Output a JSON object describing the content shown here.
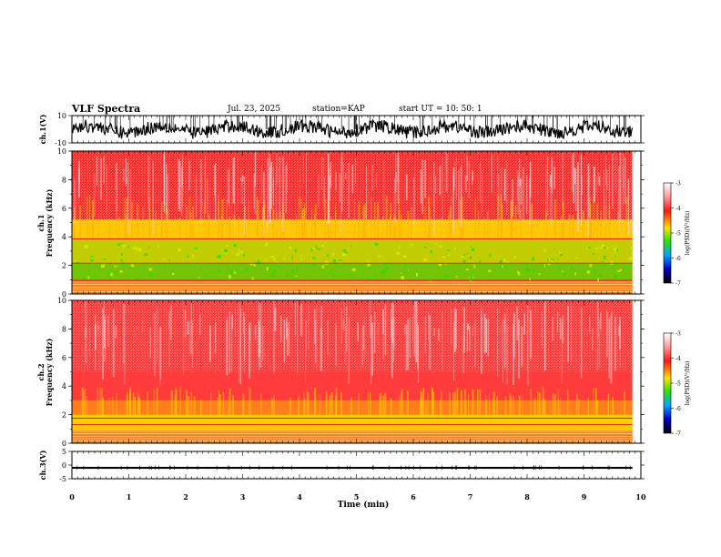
{
  "header": {
    "title": "VLF Spectra",
    "date": "Jul. 23, 2025",
    "station": "station=KAP",
    "start": "start UT =  10: 50: 1"
  },
  "colors": {
    "spectrogram_bg": "#ff2a2a",
    "spectrogram_low": "#ffb0b0",
    "band_yellow": "#f5e600",
    "band_green": "#48e000",
    "trace": "#000000"
  },
  "colorbar": {
    "label": "log(PSD)(V²/Hz)",
    "ticks": [
      "-3",
      "-4",
      "-5",
      "-6",
      "-7"
    ],
    "tick_values": [
      -3,
      -4,
      -5,
      -6,
      -7
    ],
    "stops": [
      "#ffffff",
      "#ff2020",
      "#ffe000",
      "#40e000",
      "#00a0ff",
      "#0000c0",
      "#000000"
    ]
  },
  "chart_data": [
    {
      "type": "line",
      "panel": "ch1-waveform",
      "ylabel": "ch.1(V)",
      "ylim": [
        -10,
        10
      ],
      "yticks": [
        "10",
        "-10"
      ],
      "x_range_min": [
        0,
        9.85
      ],
      "description_values": {
        "mean_V": 0,
        "typical_amplitude_V": 6,
        "max_amplitude_V": 10
      }
    },
    {
      "type": "heatmap",
      "panel": "ch1-spectrogram",
      "ylabel_1": "ch.1",
      "ylabel_2": "Frequency (kHz)",
      "ylim": [
        0,
        10
      ],
      "yticks": [
        "0",
        "2",
        "4",
        "6",
        "8",
        "10"
      ],
      "bands_kHz": [
        {
          "from": 0.0,
          "to": 0.9,
          "level": "orange"
        },
        {
          "from": 1.0,
          "to": 2.1,
          "level": "green"
        },
        {
          "from": 2.1,
          "to": 3.8,
          "level": "green-yellow"
        },
        {
          "from": 3.8,
          "to": 5.2,
          "level": "yellow"
        },
        {
          "from": 5.2,
          "to": 10.0,
          "level": "red"
        }
      ],
      "lines_kHz": [
        2.15,
        3.85
      ]
    },
    {
      "type": "heatmap",
      "panel": "ch2-spectrogram",
      "ylabel_1": "ch.2",
      "ylabel_2": "Frequency (kHz)",
      "ylim": [
        0,
        10
      ],
      "yticks": [
        "0",
        "2",
        "4",
        "6",
        "8",
        "10"
      ],
      "bands_kHz": [
        {
          "from": 0.0,
          "to": 0.9,
          "level": "orange"
        },
        {
          "from": 0.9,
          "to": 2.0,
          "level": "yellow"
        },
        {
          "from": 2.0,
          "to": 3.0,
          "level": "orange"
        },
        {
          "from": 3.0,
          "to": 10.0,
          "level": "red-light"
        }
      ],
      "lines_kHz": [
        1.3,
        1.75
      ]
    },
    {
      "type": "line",
      "panel": "ch3-waveform",
      "ylabel": "ch.3(V)",
      "ylim": [
        -5,
        5
      ],
      "yticks": [
        "5",
        "0",
        "-5"
      ],
      "description_values": {
        "mean_V": -1,
        "band_half_width_V": 0.35
      }
    }
  ],
  "xaxis": {
    "label": "Time (min)",
    "ticks": [
      "0",
      "1",
      "2",
      "3",
      "4",
      "5",
      "6",
      "7",
      "8",
      "9",
      "10"
    ],
    "range": [
      0,
      10
    ],
    "data_end": 9.85
  }
}
